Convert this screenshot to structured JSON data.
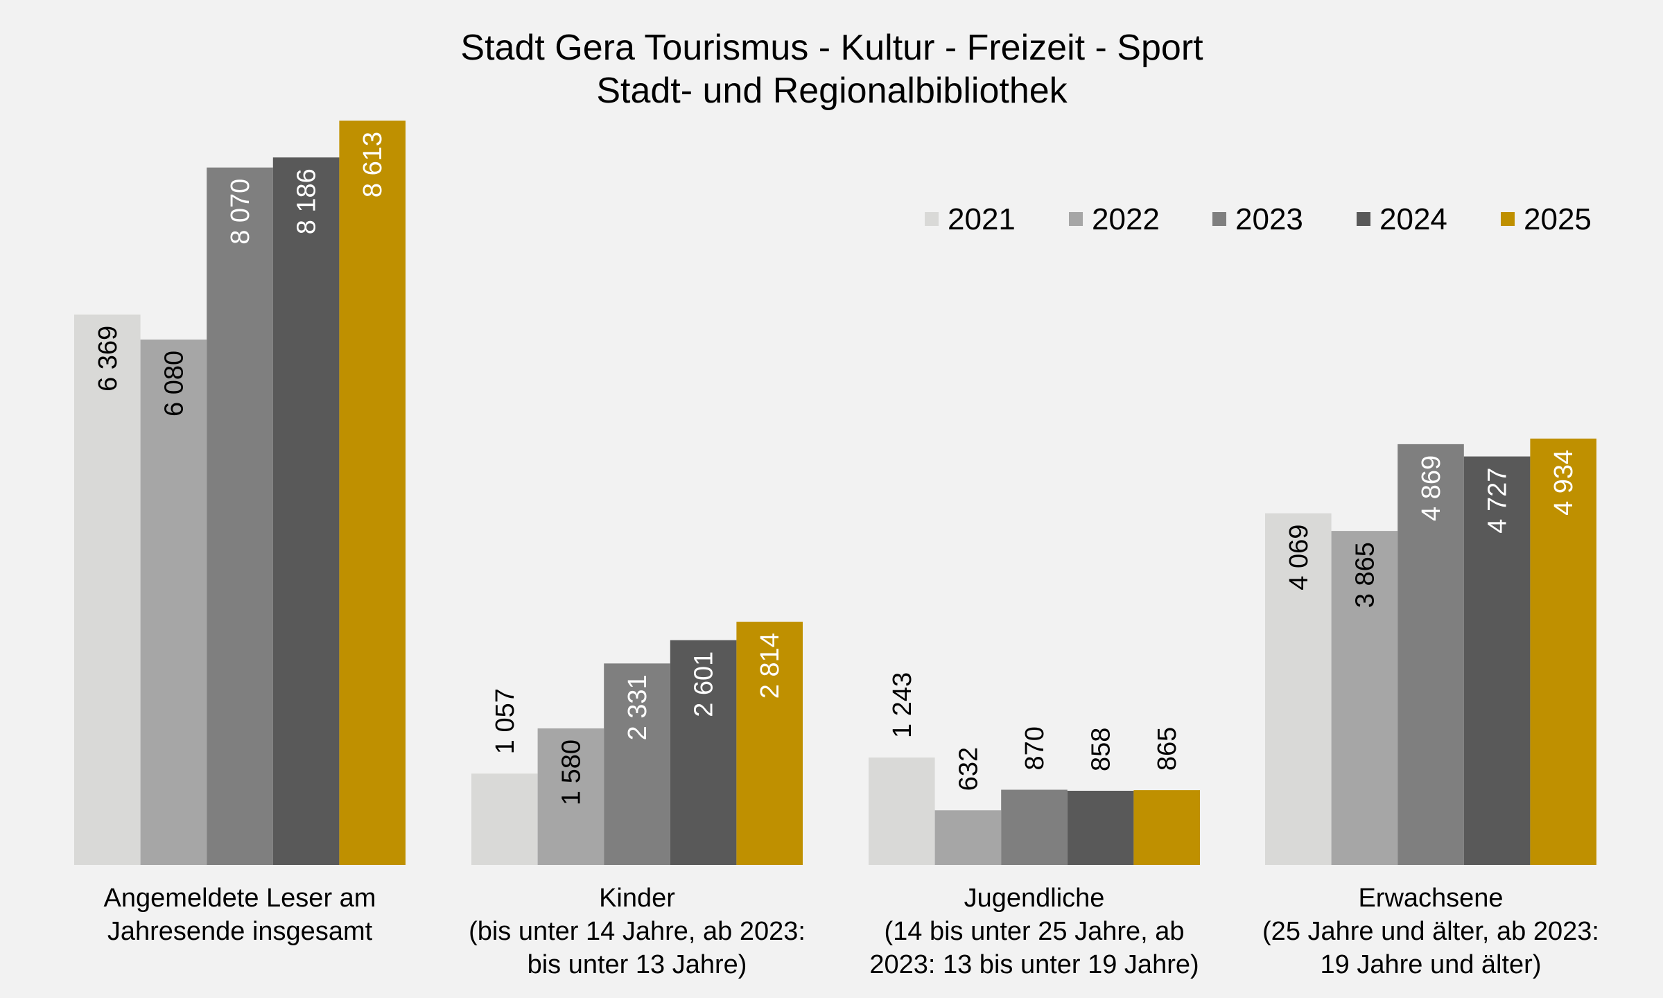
{
  "chart_data": {
    "type": "bar",
    "title": "Stadt Gera Tourismus - Kultur - Freizeit - Sport",
    "subtitle": "Stadt- und Regionalbibliothek",
    "categories": [
      [
        "Angemeldete Leser am",
        "Jahresende insgesamt"
      ],
      [
        "Kinder",
        "(bis unter 14 Jahre, ab 2023:",
        "bis unter 13 Jahre)"
      ],
      [
        "Jugendliche",
        "(14 bis unter 25 Jahre, ab",
        "2023: 13 bis unter 19 Jahre)"
      ],
      [
        "Erwachsene",
        "(25 Jahre und älter, ab 2023:",
        "19 Jahre und älter)"
      ]
    ],
    "series": [
      {
        "name": "2021",
        "color": "#d9d9d7",
        "label_color": "#000000",
        "values": [
          6369,
          1057,
          1243,
          4069
        ],
        "labels": [
          "6 369",
          "1 057",
          "1 243",
          "4 069"
        ]
      },
      {
        "name": "2022",
        "color": "#a6a6a6",
        "label_color": "#000000",
        "values": [
          6080,
          1580,
          632,
          3865
        ],
        "labels": [
          "6 080",
          "1 580",
          "632",
          "3 865"
        ]
      },
      {
        "name": "2023",
        "color": "#7f7f7f",
        "label_color": "#ffffff",
        "values": [
          8070,
          2331,
          870,
          4869
        ],
        "labels": [
          "8 070",
          "2 331",
          "870",
          "4 869"
        ]
      },
      {
        "name": "2024",
        "color": "#595959",
        "label_color": "#ffffff",
        "values": [
          8186,
          2601,
          858,
          4727
        ],
        "labels": [
          "8 186",
          "2 601",
          "858",
          "4 727"
        ]
      },
      {
        "name": "2025",
        "color": "#bf9000",
        "label_color": "#ffffff",
        "values": [
          8613,
          2814,
          865,
          4934
        ],
        "labels": [
          "8 613",
          "2 814",
          "865",
          "4 934"
        ]
      }
    ],
    "ylim": [
      0,
      8613
    ],
    "grid": false,
    "legend_position": "top-right"
  }
}
